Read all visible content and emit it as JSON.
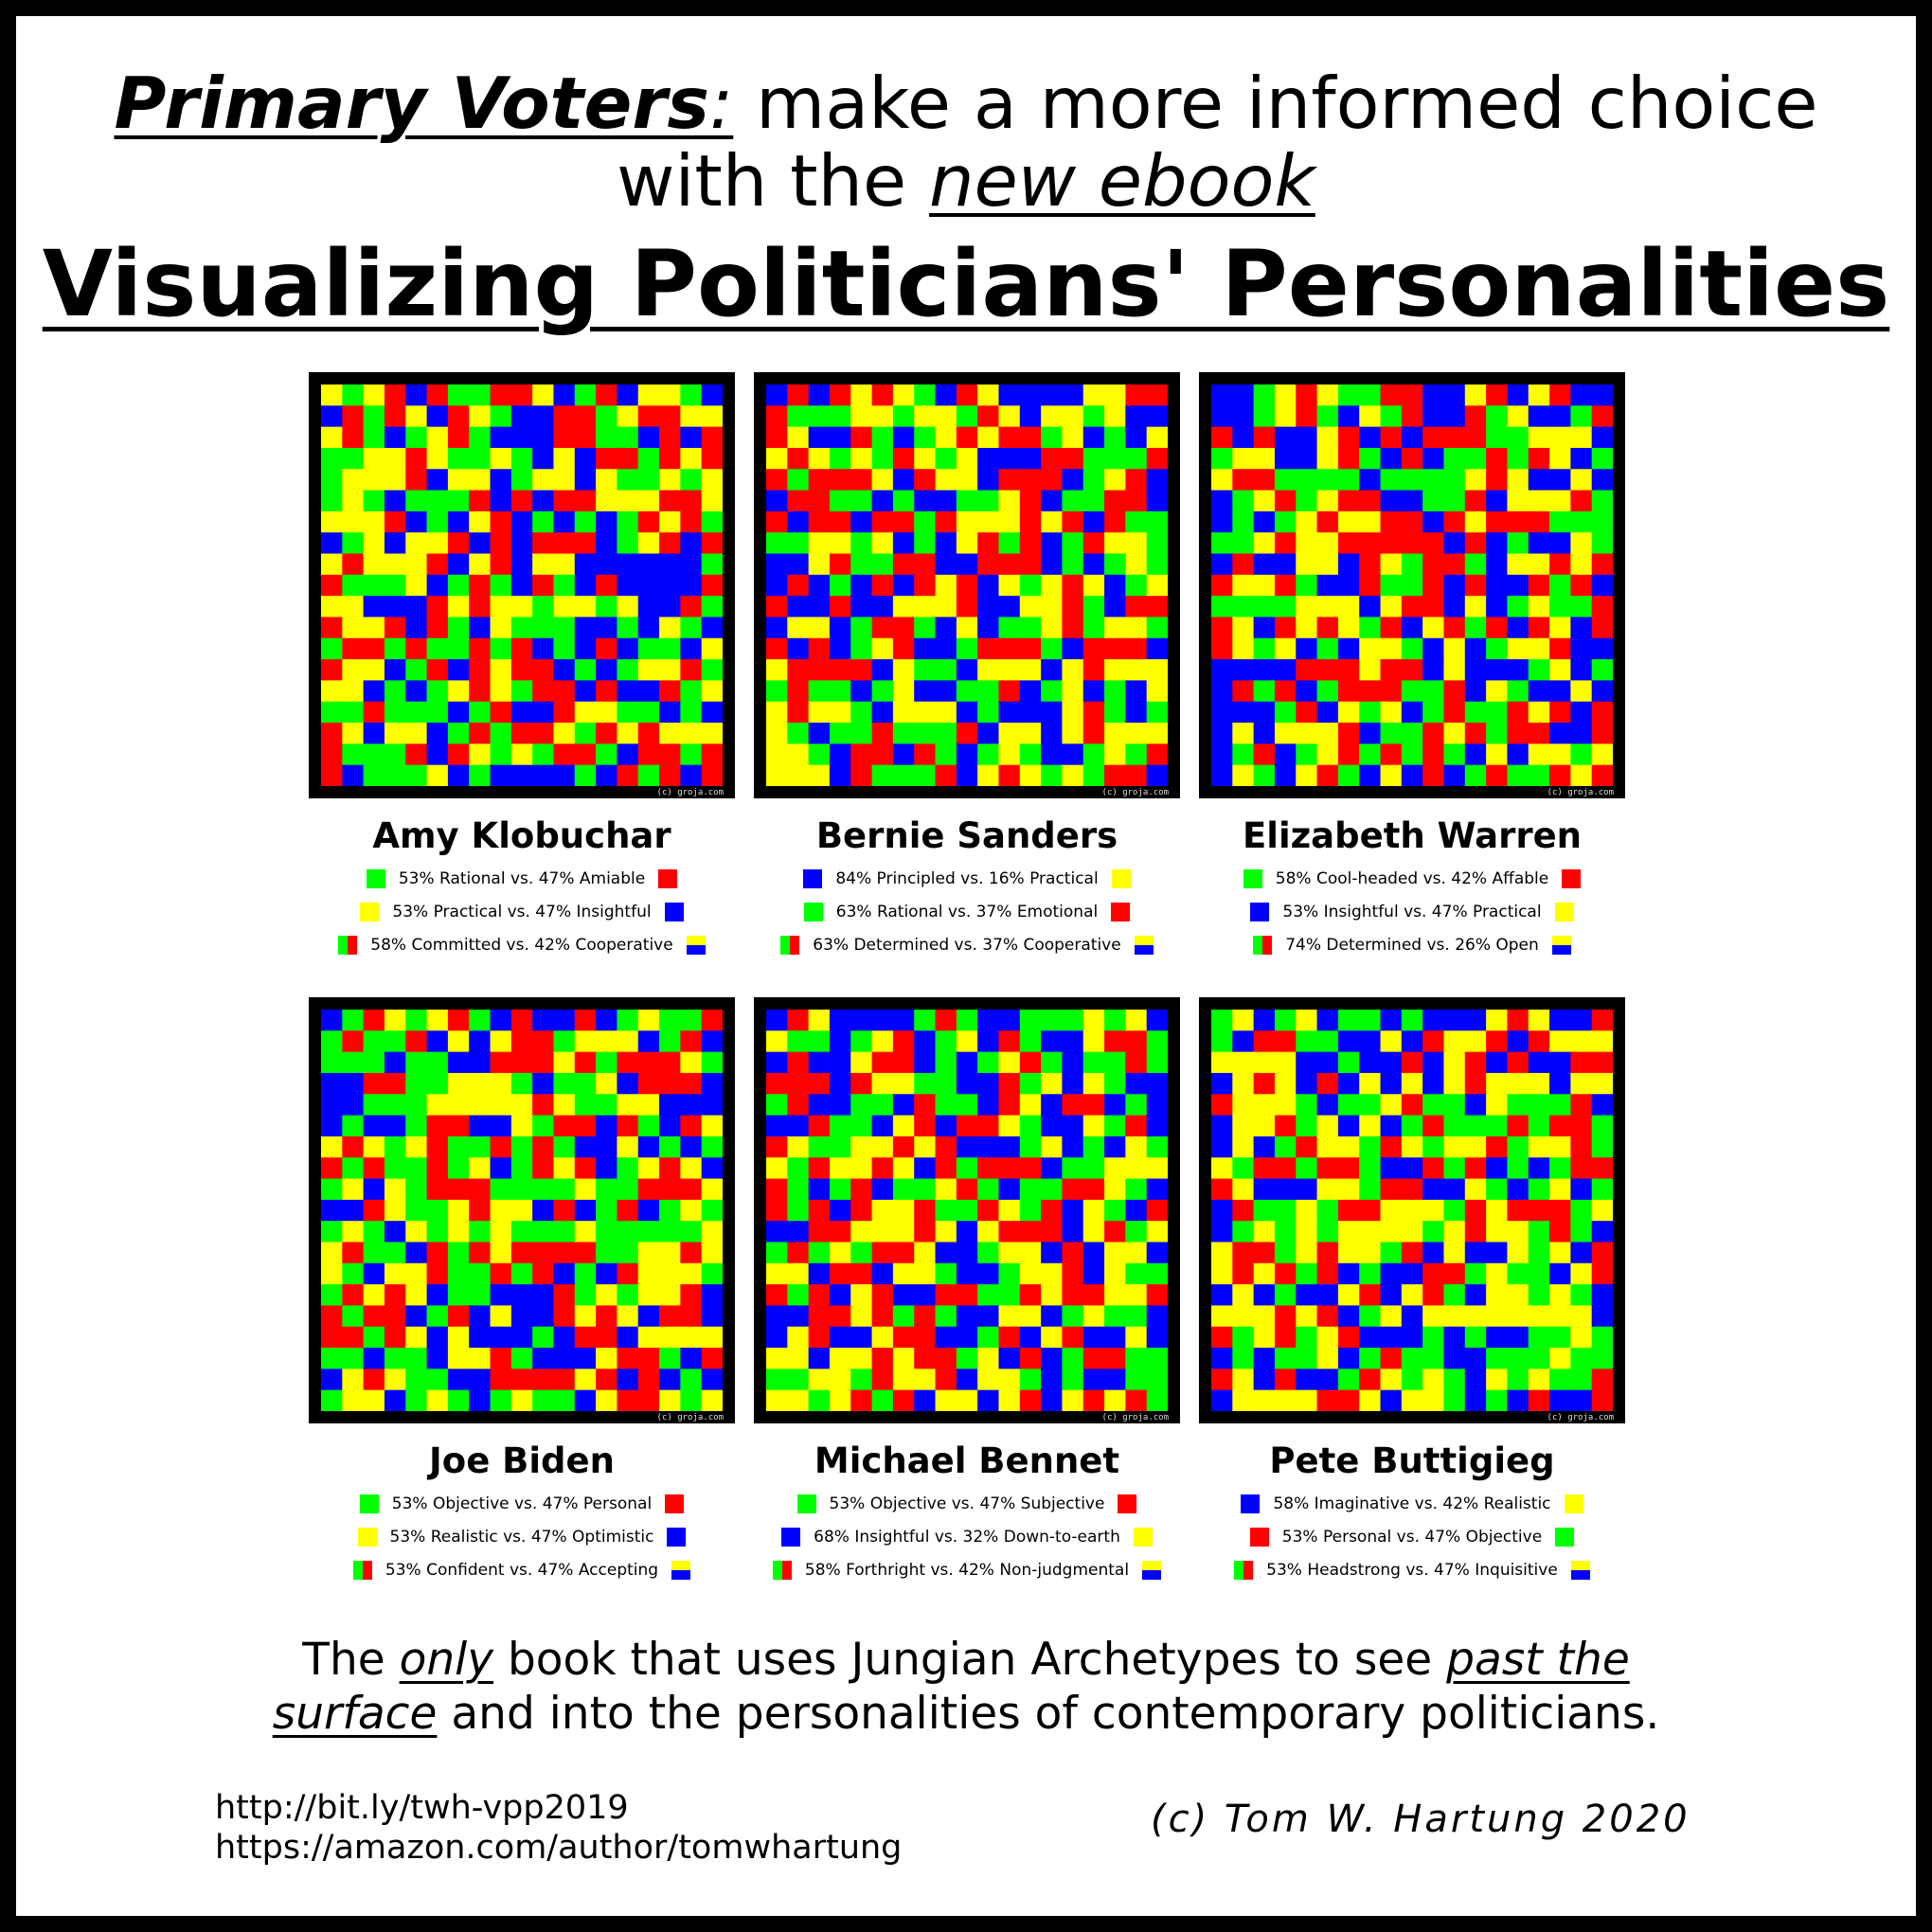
{
  "header": {
    "primary_voters": "Primary Voters",
    "colon": ":",
    "line1_rest": " make a more informed choice",
    "line2_prefix": "with the ",
    "new_ebook": "new ebook",
    "book_title": "Visualizing Politicians' Personalities"
  },
  "colors": {
    "green": "#00ff00",
    "red": "#ff0000",
    "yellow": "#ffff00",
    "blue": "#0000ff",
    "frame": "#000000"
  },
  "grid_credit": "(c) groja.com",
  "politicians": [
    {
      "name": "Amy Klobuchar",
      "legend": [
        {
          "text": "53% Rational vs. 47% Amiable",
          "left": "green",
          "right": "red"
        },
        {
          "text": "53% Practical vs. 47% Insightful",
          "left": "yellow",
          "right": "blue"
        },
        {
          "text": "58% Committed vs. 42% Cooperative",
          "left": "green-red",
          "right": "yellow-blue"
        }
      ]
    },
    {
      "name": "Bernie Sanders",
      "legend": [
        {
          "text": "84% Principled vs. 16% Practical",
          "left": "blue",
          "right": "yellow"
        },
        {
          "text": "63% Rational vs. 37% Emotional",
          "left": "green",
          "right": "red"
        },
        {
          "text": "63% Determined vs. 37% Cooperative",
          "left": "green-red",
          "right": "yellow-blue"
        }
      ]
    },
    {
      "name": "Elizabeth Warren",
      "legend": [
        {
          "text": "58% Cool-headed vs. 42% Affable",
          "left": "green",
          "right": "red"
        },
        {
          "text": "53% Insightful vs. 47% Practical",
          "left": "blue",
          "right": "yellow"
        },
        {
          "text": "74% Determined vs. 26% Open",
          "left": "green-red",
          "right": "yellow-blue"
        }
      ]
    },
    {
      "name": "Joe Biden",
      "legend": [
        {
          "text": "53% Objective vs. 47% Personal",
          "left": "green",
          "right": "red"
        },
        {
          "text": "53% Realistic vs. 47% Optimistic",
          "left": "yellow",
          "right": "blue"
        },
        {
          "text": "53% Confident vs. 47% Accepting",
          "left": "green-red",
          "right": "yellow-blue"
        }
      ]
    },
    {
      "name": "Michael Bennet",
      "legend": [
        {
          "text": "53% Objective vs. 47% Subjective",
          "left": "green",
          "right": "red"
        },
        {
          "text": "68% Insightful vs. 32% Down-to-earth",
          "left": "blue",
          "right": "yellow"
        },
        {
          "text": "58% Forthright vs. 42% Non-judgmental",
          "left": "green-red",
          "right": "yellow-blue"
        }
      ]
    },
    {
      "name": "Pete Buttigieg",
      "legend": [
        {
          "text": "58% Imaginative vs. 42% Realistic",
          "left": "blue",
          "right": "yellow"
        },
        {
          "text": "53% Personal vs. 47% Objective",
          "left": "red",
          "right": "green"
        },
        {
          "text": "53% Headstrong vs. 47% Inquisitive",
          "left": "green-red",
          "right": "yellow-blue"
        }
      ]
    }
  ],
  "footer": {
    "l1_a": "The ",
    "only": "only",
    "l1_b": " book that uses Jungian Archetypes to see ",
    "past_the": "past the",
    "surface": "surface",
    "l2_b": " and into the personalities of contemporary politicians."
  },
  "links": [
    "http://bit.ly/twh-vpp2019",
    "https://amazon.com/author/tomwhartung"
  ],
  "copyright": "(c) Tom W. Hartung 2020"
}
